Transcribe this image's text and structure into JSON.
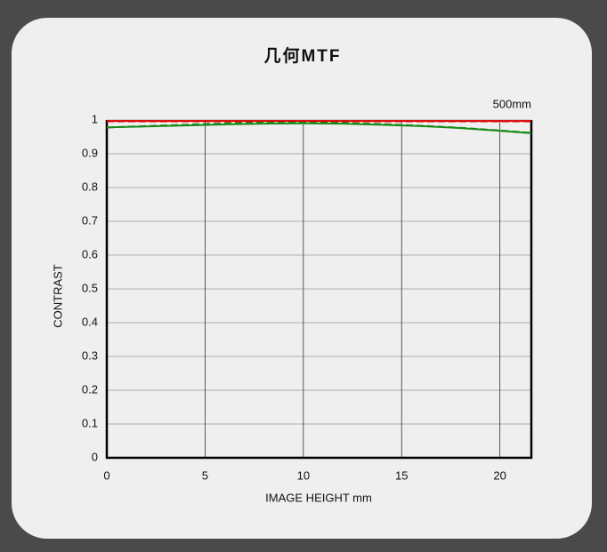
{
  "chart_data": {
    "type": "line",
    "title": "几何MTF",
    "annotation": "500mm",
    "x_label": "IMAGE HEIGHT   mm",
    "y_label": "CONTRAST",
    "x": [
      0,
      2,
      4,
      6,
      8,
      10,
      12,
      14,
      16,
      18,
      20,
      21.6
    ],
    "series": [
      {
        "color": "#e00000",
        "dashed": false,
        "values": [
          0.997,
          0.997,
          0.997,
          0.997,
          0.997,
          0.997,
          0.997,
          0.997,
          0.997,
          0.997,
          0.997,
          0.997
        ]
      },
      {
        "color": "#e00000",
        "dashed": true,
        "values": [
          0.996,
          0.996,
          0.996,
          0.996,
          0.996,
          0.996,
          0.996,
          0.996,
          0.996,
          0.996,
          0.996,
          0.996
        ]
      },
      {
        "color": "#1a8a1a",
        "dashed": false,
        "values": [
          0.978,
          0.981,
          0.984,
          0.987,
          0.989,
          0.99,
          0.989,
          0.986,
          0.982,
          0.976,
          0.968,
          0.961
        ]
      },
      {
        "color": "#1a8a1a",
        "dashed": true,
        "values": [
          0.978,
          0.982,
          0.986,
          0.99,
          0.992,
          0.992,
          0.991,
          0.988,
          0.983,
          0.977,
          0.969,
          0.962
        ]
      }
    ],
    "xlim": [
      0,
      21.6
    ],
    "xticks": [
      0,
      5,
      10,
      15,
      20
    ],
    "ylim": [
      0,
      1
    ],
    "yticks": [
      0,
      0.1,
      0.2,
      0.3,
      0.4,
      0.5,
      0.6,
      0.7,
      0.8,
      0.9,
      1
    ],
    "grid": true
  }
}
